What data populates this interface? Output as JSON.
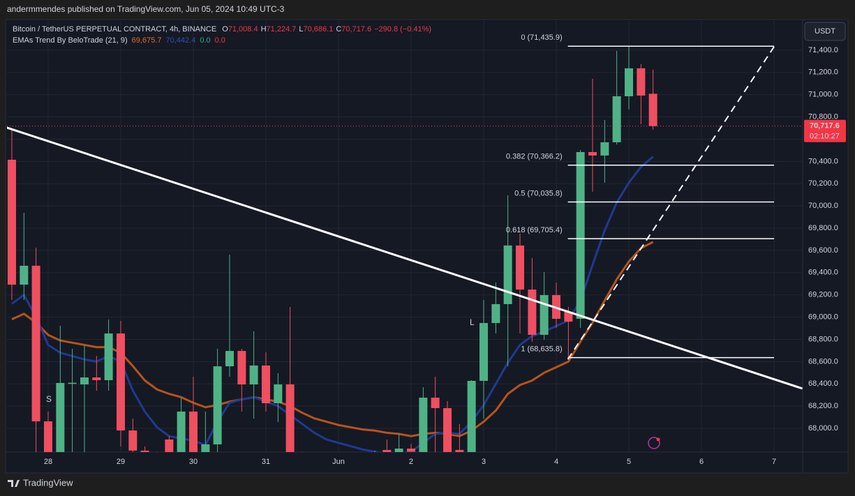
{
  "published": "andermmendes published on TradingView.com, Jun 05, 2024 10:49 UTC-3",
  "brand": "TradingView",
  "chart_data": {
    "type": "candlestick",
    "header": {
      "symbol": "Bitcoin / TetherUS PERPETUAL CONTRACT, 4h, BINANCE",
      "o_key": "O",
      "o": "71,008.4",
      "h_key": "H",
      "h": "71,224.7",
      "l_key": "L",
      "l": "70,686.1",
      "c_key": "C",
      "c": "70,717.6",
      "change": "−290.8 (−0.41%)"
    },
    "indicator": {
      "name": "EMAs Trend By BeloTrade (21, 9)",
      "extra": [
        {
          "label": "0.0",
          "color": "#22ab94"
        },
        {
          "label": "0.0",
          "color": "#f23645"
        }
      ]
    },
    "currency": "USDT",
    "price_label": "70,717.6",
    "countdown": "02:10:27",
    "up_color": "#4fb286",
    "down_color": "#ef4f60",
    "xlim": [
      27.433,
      38.394
    ],
    "ylim": [
      67787,
      71663
    ],
    "grid": true,
    "xticks": [
      28,
      29,
      30,
      31,
      {
        "value": 32,
        "label": "Jun"
      },
      {
        "value": 33,
        "label": "2"
      },
      {
        "value": 34,
        "label": "3"
      },
      {
        "value": 35,
        "label": "4"
      },
      {
        "value": 36,
        "label": "5"
      },
      {
        "value": 37,
        "label": "6"
      },
      {
        "value": 38,
        "label": "7"
      }
    ],
    "yticks": [
      {
        "value": 68000,
        "label": "68,000.0"
      },
      {
        "value": 68200,
        "label": "68,200.0"
      },
      {
        "value": 68400,
        "label": "68,400.0"
      },
      {
        "value": 68600,
        "label": "68,600.0"
      },
      {
        "value": 68800,
        "label": "68,800.0"
      },
      {
        "value": 69000,
        "label": "69,000.0"
      },
      {
        "value": 69200,
        "label": "69,200.0"
      },
      {
        "value": 69400,
        "label": "69,400.0"
      },
      {
        "value": 69600,
        "label": "69,600.0"
      },
      {
        "value": 69800,
        "label": "69,800.0"
      },
      {
        "value": 70000,
        "label": "70,000.0"
      },
      {
        "value": 70200,
        "label": "70,200.0"
      },
      {
        "value": 70400,
        "label": "70,400.0"
      },
      {
        "value": 70600,
        "label": "70,600.0"
      },
      {
        "value": 70800,
        "label": "70,800.0"
      },
      {
        "value": 71000,
        "label": "71,000.0"
      },
      {
        "value": 71200,
        "label": "71,200.0"
      },
      {
        "value": 71400,
        "label": "71,400.0"
      }
    ],
    "x": [
      27.5,
      27.667,
      27.833,
      28,
      28.167,
      28.333,
      28.5,
      28.667,
      28.833,
      29,
      29.167,
      29.333,
      29.5,
      29.667,
      29.833,
      30,
      30.167,
      30.333,
      30.5,
      30.667,
      30.833,
      31,
      31.167,
      31.333,
      31.5,
      31.667,
      31.833,
      32,
      32.167,
      32.333,
      32.5,
      32.667,
      32.833,
      33,
      33.167,
      33.333,
      33.5,
      33.667,
      33.833,
      34,
      34.167,
      34.333,
      34.5,
      34.667,
      34.833,
      35,
      35.167,
      35.333,
      35.5,
      35.667,
      35.833,
      36,
      36.167,
      36.333
    ],
    "open": [
      70415,
      69292,
      69462,
      68063,
      67760,
      68400,
      68395,
      68458,
      68433,
      68853,
      67981,
      67800,
      67770,
      67900,
      67760,
      68151,
      67760,
      67856,
      68558,
      68696,
      68395,
      68565,
      68226,
      68395,
      67760,
      67720,
      67700,
      67730,
      67690,
      67710,
      67740,
      67806,
      67780,
      67818,
      67780,
      68276,
      68182,
      67806,
      67780,
      68427,
      68947,
      69117,
      69644,
      69248,
      68841,
      69198,
      69048,
      68985,
      70484,
      70453,
      70572,
      70986,
      71237,
      71008.4
    ],
    "high": [
      70691,
      69938,
      69625,
      68151,
      68922,
      68715,
      68747,
      68652,
      68979,
      68966,
      68088,
      67837,
      67790,
      67931,
      68276,
      68464,
      68151,
      68715,
      69562,
      68715,
      68872,
      68684,
      68496,
      69092,
      67790,
      67770,
      67770,
      67760,
      67750,
      67780,
      67800,
      67900,
      67950,
      67860,
      68370,
      68464,
      68245,
      68038,
      68433,
      69154,
      69311,
      70095,
      69750,
      69531,
      69405,
      69311,
      69092,
      70503,
      71143,
      70773,
      71394,
      71431,
      71275,
      71224.7
    ],
    "low": [
      69154,
      69154,
      67700,
      67700,
      67700,
      67700,
      67700,
      68339,
      68339,
      67837,
      67700,
      67700,
      67650,
      67700,
      67700,
      67700,
      67700,
      67700,
      68464,
      68151,
      68088,
      68151,
      68056,
      67700,
      67650,
      67620,
      67640,
      67620,
      67630,
      67650,
      67670,
      67700,
      67700,
      67700,
      67700,
      67700,
      67700,
      67700,
      67700,
      68088,
      68853,
      68558,
      68853,
      68778,
      68797,
      68903,
      68621,
      68903,
      70127,
      70208,
      70553,
      70867,
      70735,
      70686.1
    ],
    "close": [
      69292,
      69462,
      68063,
      67760,
      68408,
      68410,
      68458,
      68433,
      68853,
      67981,
      67800,
      67770,
      67740,
      67760,
      68151,
      67760,
      67856,
      68558,
      68696,
      68395,
      68565,
      68226,
      68395,
      67760,
      67720,
      67700,
      67730,
      67690,
      67710,
      67740,
      67760,
      67780,
      67818,
      67790,
      68276,
      68182,
      67760,
      67787,
      68427,
      68947,
      69117,
      69644,
      69248,
      68841,
      69198,
      68985,
      68960,
      70484,
      70453,
      70572,
      70986,
      71237,
      70992,
      70717.6
    ],
    "emas": [
      {
        "color": "#b5541c",
        "value_label": "69,675.7",
        "values": [
          68980,
          69030,
          68950,
          68840,
          68790,
          68770,
          68750,
          68730,
          68730,
          68680,
          68560,
          68430,
          68350,
          68310,
          68280,
          68230,
          68190,
          68210,
          68240,
          68260,
          68280,
          68260,
          68240,
          68200,
          68140,
          68090,
          68060,
          68030,
          68010,
          67990,
          67980,
          67960,
          67950,
          67930,
          67950,
          67960,
          67950,
          67930,
          67980,
          68060,
          68160,
          68310,
          68390,
          68430,
          68500,
          68550,
          68600,
          68780,
          68950,
          69150,
          69340,
          69500,
          69620,
          69675.7
        ]
      },
      {
        "color": "#1f3a8f",
        "value_label": "70,442.4",
        "values": [
          69120,
          69200,
          69000,
          68750,
          68680,
          68650,
          68620,
          68600,
          68650,
          68600,
          68340,
          68150,
          68010,
          67930,
          67910,
          67890,
          67850,
          68060,
          68230,
          68260,
          68280,
          68240,
          68200,
          68120,
          68040,
          67960,
          67900,
          67870,
          67840,
          67810,
          67790,
          67770,
          67770,
          67790,
          67870,
          67950,
          67960,
          67950,
          68060,
          68210,
          68400,
          68590,
          68750,
          68830,
          68870,
          68920,
          68970,
          69150,
          69470,
          69780,
          70030,
          70210,
          70350,
          70442.4
        ]
      }
    ],
    "fib": {
      "start": 35.16,
      "end": 38.0,
      "levels": [
        {
          "value": 71435.9,
          "label": "0 (71,435.9)"
        },
        {
          "value": 70366.2,
          "label": "0.382 (70,366.2)"
        },
        {
          "value": 70035.8,
          "label": "0.5 (70,035.8)"
        },
        {
          "value": 69705.4,
          "label": "0.618 (69,705.4)"
        },
        {
          "value": 68635.8,
          "label": "1 (68,635.8)"
        }
      ]
    },
    "drawings": [
      {
        "style": "solid",
        "points": [
          [
            27.43,
            70704
          ],
          [
            38.39,
            68358
          ]
        ]
      },
      {
        "style": "dashed",
        "points": [
          [
            35.16,
            68621
          ],
          [
            38.0,
            71431
          ]
        ]
      }
    ],
    "signals": [
      {
        "text": "L",
        "x": 33.84,
        "price": 68947,
        "color": "#089981"
      },
      {
        "text": "S",
        "x": 28.01,
        "price": 68257,
        "color": "#f23645"
      }
    ]
  }
}
